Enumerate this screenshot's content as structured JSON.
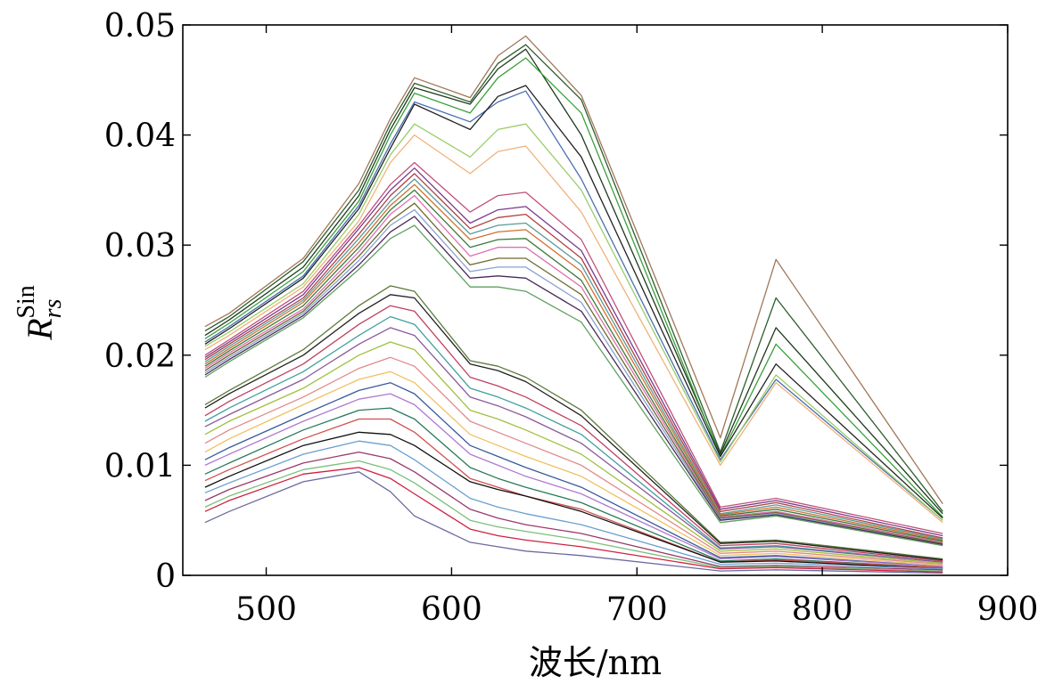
{
  "chart_data": {
    "type": "line",
    "title": "",
    "xlabel": "波长/nm",
    "ylabel": {
      "main": "R",
      "subscript": "rs",
      "superscript": "Sin"
    },
    "xlim": [
      455,
      900
    ],
    "ylim": [
      0,
      0.05
    ],
    "xticks": [
      500,
      600,
      700,
      800,
      900
    ],
    "yticks": [
      0,
      0.01,
      0.02,
      0.03,
      0.04,
      0.05
    ],
    "xtick_labels": [
      "500",
      "600",
      "700",
      "800",
      "900"
    ],
    "ytick_labels": [
      "0",
      "0.01",
      "0.02",
      "0.03",
      "0.04",
      "0.05"
    ],
    "grid": false,
    "legend": "none",
    "x": [
      467,
      480,
      520,
      550,
      567,
      580,
      610,
      625,
      640,
      670,
      745,
      775,
      865
    ],
    "series": [
      {
        "color": "#a0785a",
        "values": [
          0.0226,
          0.0238,
          0.0288,
          0.0356,
          0.0415,
          0.0452,
          0.0434,
          0.0472,
          0.049,
          0.0436,
          0.0125,
          0.0287,
          0.0065
        ]
      },
      {
        "color": "#2e5e2e",
        "values": [
          0.0222,
          0.0235,
          0.0285,
          0.035,
          0.041,
          0.0447,
          0.043,
          0.0465,
          0.0482,
          0.0432,
          0.0112,
          0.0252,
          0.0058
        ]
      },
      {
        "color": "#1f3a1f",
        "values": [
          0.0218,
          0.0232,
          0.028,
          0.0345,
          0.0405,
          0.0443,
          0.0428,
          0.046,
          0.0478,
          0.04,
          0.011,
          0.0225,
          0.0056
        ]
      },
      {
        "color": "#3aa03a",
        "values": [
          0.0215,
          0.0229,
          0.0276,
          0.034,
          0.04,
          0.0438,
          0.042,
          0.0452,
          0.047,
          0.042,
          0.0108,
          0.021,
          0.0053
        ]
      },
      {
        "color": "#4a6fb0",
        "values": [
          0.0212,
          0.0226,
          0.0272,
          0.0336,
          0.0392,
          0.043,
          0.0412,
          0.043,
          0.044,
          0.036,
          0.0105,
          0.0178,
          0.005
        ]
      },
      {
        "color": "#222222",
        "values": [
          0.021,
          0.0224,
          0.027,
          0.0333,
          0.0388,
          0.0428,
          0.0405,
          0.0435,
          0.0445,
          0.038,
          0.0108,
          0.0192,
          0.0052
        ]
      },
      {
        "color": "#9acd6a",
        "values": [
          0.0208,
          0.0221,
          0.0265,
          0.0328,
          0.0382,
          0.041,
          0.038,
          0.0405,
          0.041,
          0.035,
          0.0103,
          0.0182,
          0.005
        ]
      },
      {
        "color": "#f0b27a",
        "values": [
          0.0205,
          0.0218,
          0.0262,
          0.0322,
          0.0375,
          0.04,
          0.0365,
          0.0385,
          0.039,
          0.033,
          0.01,
          0.0175,
          0.0048
        ]
      },
      {
        "color": "#c0507a",
        "values": [
          0.02,
          0.0214,
          0.0258,
          0.0318,
          0.0355,
          0.0375,
          0.033,
          0.0345,
          0.0348,
          0.0305,
          0.0062,
          0.007,
          0.0038
        ]
      },
      {
        "color": "#7a3a8a",
        "values": [
          0.0198,
          0.0212,
          0.0255,
          0.0315,
          0.035,
          0.037,
          0.032,
          0.0332,
          0.0335,
          0.0295,
          0.006,
          0.0068,
          0.0036
        ]
      },
      {
        "color": "#b04040",
        "values": [
          0.0196,
          0.021,
          0.0252,
          0.031,
          0.0345,
          0.0365,
          0.0315,
          0.0325,
          0.0328,
          0.0288,
          0.0058,
          0.0066,
          0.0034
        ]
      },
      {
        "color": "#5a9a9a",
        "values": [
          0.0194,
          0.0208,
          0.025,
          0.0306,
          0.034,
          0.036,
          0.031,
          0.0318,
          0.032,
          0.0282,
          0.0056,
          0.0064,
          0.0033
        ]
      },
      {
        "color": "#d07030",
        "values": [
          0.0192,
          0.0206,
          0.0248,
          0.0302,
          0.0336,
          0.0355,
          0.0305,
          0.0312,
          0.0314,
          0.0276,
          0.0055,
          0.0062,
          0.0032
        ]
      },
      {
        "color": "#3a7a3a",
        "values": [
          0.019,
          0.0204,
          0.0245,
          0.0298,
          0.0332,
          0.035,
          0.0298,
          0.0305,
          0.0306,
          0.0268,
          0.0054,
          0.006,
          0.0031
        ]
      },
      {
        "color": "#e070b0",
        "values": [
          0.0188,
          0.0202,
          0.0242,
          0.0294,
          0.0328,
          0.0345,
          0.029,
          0.0298,
          0.0298,
          0.0262,
          0.0053,
          0.0058,
          0.003
        ]
      },
      {
        "color": "#6a6a2a",
        "values": [
          0.0186,
          0.02,
          0.024,
          0.029,
          0.0322,
          0.0338,
          0.0282,
          0.0288,
          0.0288,
          0.0255,
          0.0052,
          0.0057,
          0.0029
        ]
      },
      {
        "color": "#8aa0d0",
        "values": [
          0.0184,
          0.0198,
          0.0238,
          0.0286,
          0.0318,
          0.0332,
          0.0276,
          0.028,
          0.028,
          0.0248,
          0.0051,
          0.0056,
          0.0028
        ]
      },
      {
        "color": "#4a2a5a",
        "values": [
          0.0182,
          0.0196,
          0.0236,
          0.0282,
          0.0312,
          0.0326,
          0.027,
          0.0272,
          0.027,
          0.024,
          0.005,
          0.0055,
          0.0028
        ]
      },
      {
        "color": "#60a060",
        "values": [
          0.018,
          0.0194,
          0.0234,
          0.0278,
          0.0306,
          0.0318,
          0.0262,
          0.0262,
          0.0258,
          0.023,
          0.0048,
          0.0054,
          0.0027
        ]
      },
      {
        "color": "#5a7a3a",
        "values": [
          0.0155,
          0.0168,
          0.0205,
          0.0245,
          0.0263,
          0.0258,
          0.0195,
          0.019,
          0.018,
          0.015,
          0.003,
          0.0032,
          0.0015
        ]
      },
      {
        "color": "#202020",
        "values": [
          0.0152,
          0.0165,
          0.02,
          0.0238,
          0.0255,
          0.0252,
          0.0192,
          0.0186,
          0.0176,
          0.0145,
          0.0029,
          0.0031,
          0.0014
        ]
      },
      {
        "color": "#c04060",
        "values": [
          0.0145,
          0.0158,
          0.0192,
          0.0228,
          0.0245,
          0.024,
          0.018,
          0.0172,
          0.0162,
          0.0136,
          0.0027,
          0.0029,
          0.0013
        ]
      },
      {
        "color": "#40a0a0",
        "values": [
          0.014,
          0.0152,
          0.0185,
          0.0218,
          0.0235,
          0.0228,
          0.017,
          0.0162,
          0.0152,
          0.0128,
          0.0025,
          0.0027,
          0.0012
        ]
      },
      {
        "color": "#8a5a9a",
        "values": [
          0.0135,
          0.0146,
          0.0178,
          0.021,
          0.0225,
          0.0218,
          0.0162,
          0.0154,
          0.0144,
          0.012,
          0.0024,
          0.0026,
          0.0012
        ]
      },
      {
        "color": "#a0c040",
        "values": [
          0.0128,
          0.014,
          0.017,
          0.02,
          0.0212,
          0.0205,
          0.015,
          0.0142,
          0.0132,
          0.011,
          0.0022,
          0.0024,
          0.0011
        ]
      },
      {
        "color": "#e08a8a",
        "values": [
          0.012,
          0.0132,
          0.0162,
          0.0188,
          0.0198,
          0.019,
          0.014,
          0.013,
          0.012,
          0.01,
          0.002,
          0.0022,
          0.001
        ]
      },
      {
        "color": "#f0c060",
        "values": [
          0.0112,
          0.0124,
          0.0155,
          0.0178,
          0.0185,
          0.0175,
          0.0128,
          0.0118,
          0.0108,
          0.009,
          0.0018,
          0.002,
          0.0009
        ]
      },
      {
        "color": "#3a5a9a",
        "values": [
          0.0105,
          0.0116,
          0.0146,
          0.0168,
          0.0175,
          0.0165,
          0.0118,
          0.0108,
          0.0098,
          0.008,
          0.0016,
          0.0018,
          0.0008
        ]
      },
      {
        "color": "#b07ad0",
        "values": [
          0.01,
          0.011,
          0.014,
          0.016,
          0.0165,
          0.0155,
          0.011,
          0.01,
          0.009,
          0.0074,
          0.0015,
          0.0017,
          0.0008
        ]
      },
      {
        "color": "#2a7a5a",
        "values": [
          0.0092,
          0.0102,
          0.0132,
          0.015,
          0.0152,
          0.0142,
          0.0098,
          0.0088,
          0.008,
          0.0066,
          0.0013,
          0.0015,
          0.0007
        ]
      },
      {
        "color": "#d05050",
        "values": [
          0.0086,
          0.0096,
          0.0124,
          0.0142,
          0.0142,
          0.013,
          0.0088,
          0.008,
          0.0072,
          0.006,
          0.0012,
          0.0014,
          0.0007
        ]
      },
      {
        "color": "#101010",
        "values": [
          0.008,
          0.009,
          0.0118,
          0.013,
          0.0128,
          0.0118,
          0.0085,
          0.0078,
          0.0072,
          0.0058,
          0.0012,
          0.0013,
          0.0006
        ]
      },
      {
        "color": "#6aa0d0",
        "values": [
          0.0075,
          0.0084,
          0.011,
          0.0122,
          0.0118,
          0.0105,
          0.007,
          0.0062,
          0.0056,
          0.0046,
          0.001,
          0.0011,
          0.0006
        ]
      },
      {
        "color": "#9a3a6a",
        "values": [
          0.0068,
          0.0078,
          0.0102,
          0.0112,
          0.0106,
          0.0094,
          0.006,
          0.0052,
          0.0046,
          0.0038,
          0.0008,
          0.0009,
          0.0005
        ]
      },
      {
        "color": "#7ac07a",
        "values": [
          0.0062,
          0.0072,
          0.0096,
          0.0104,
          0.0096,
          0.0084,
          0.005,
          0.0044,
          0.004,
          0.0032,
          0.0007,
          0.0008,
          0.0004
        ]
      },
      {
        "color": "#d02040",
        "values": [
          0.0058,
          0.0068,
          0.0092,
          0.0098,
          0.0088,
          0.0074,
          0.0042,
          0.0036,
          0.0032,
          0.0026,
          0.0006,
          0.0007,
          0.0003
        ]
      },
      {
        "color": "#6a6aa0",
        "values": [
          0.0048,
          0.0058,
          0.0085,
          0.0094,
          0.0076,
          0.0054,
          0.003,
          0.0026,
          0.0022,
          0.0018,
          0.0004,
          0.0005,
          0.0002
        ]
      }
    ]
  }
}
